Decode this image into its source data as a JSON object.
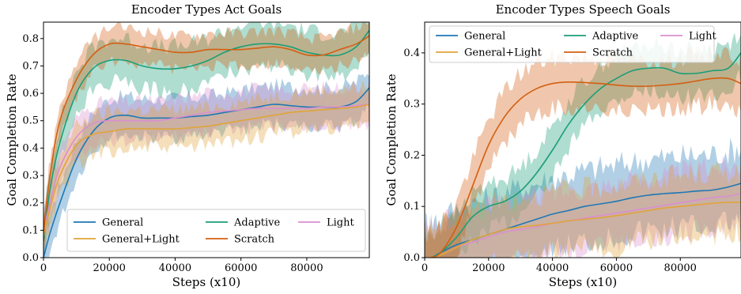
{
  "chart_data": [
    {
      "type": "line",
      "title": "Encoder Types Act Goals",
      "xlabel": "Steps (x10)",
      "ylabel": "Goal Completion Rate",
      "xlim": [
        0,
        99000
      ],
      "ylim": [
        0.0,
        0.86
      ],
      "xticks": [
        0,
        20000,
        40000,
        60000,
        80000
      ],
      "xtick_labels": [
        "0",
        "20000",
        "40000",
        "60000",
        "80000"
      ],
      "yticks": [
        0.0,
        0.1,
        0.2,
        0.3,
        0.4,
        0.5,
        0.6,
        0.7,
        0.8
      ],
      "ytick_labels": [
        "0.0",
        "0.1",
        "0.2",
        "0.3",
        "0.4",
        "0.5",
        "0.6",
        "0.7",
        "0.8"
      ],
      "grid": false,
      "legend": "lower-right",
      "x": [
        0,
        2000,
        5000,
        10000,
        15000,
        20000,
        25000,
        30000,
        35000,
        40000,
        45000,
        50000,
        55000,
        60000,
        65000,
        70000,
        75000,
        80000,
        85000,
        90000,
        95000,
        99000
      ],
      "series": [
        {
          "name": "General",
          "color": "#1f77b4",
          "values": [
            0.0,
            0.09,
            0.2,
            0.36,
            0.46,
            0.51,
            0.52,
            0.51,
            0.51,
            0.51,
            0.515,
            0.52,
            0.53,
            0.54,
            0.55,
            0.56,
            0.555,
            0.55,
            0.55,
            0.55,
            0.57,
            0.62
          ],
          "band": 0.07
        },
        {
          "name": "Adaptive",
          "color": "#1a9e77",
          "values": [
            0.06,
            0.25,
            0.42,
            0.6,
            0.69,
            0.72,
            0.72,
            0.7,
            0.69,
            0.69,
            0.7,
            0.72,
            0.75,
            0.77,
            0.78,
            0.78,
            0.77,
            0.75,
            0.74,
            0.74,
            0.77,
            0.83
          ],
          "band": 0.08
        },
        {
          "name": "Light",
          "color": "#d98fd0",
          "values": [
            0.1,
            0.2,
            0.33,
            0.44,
            0.49,
            0.5,
            0.5,
            0.5,
            0.5,
            0.51,
            0.52,
            0.53,
            0.535,
            0.54,
            0.545,
            0.545,
            0.545,
            0.545,
            0.55,
            0.55,
            0.555,
            0.56
          ],
          "band": 0.07
        },
        {
          "name": "General+Light",
          "color": "#e0a43a",
          "values": [
            0.08,
            0.18,
            0.3,
            0.41,
            0.45,
            0.46,
            0.47,
            0.47,
            0.47,
            0.47,
            0.475,
            0.48,
            0.49,
            0.5,
            0.51,
            0.52,
            0.53,
            0.535,
            0.54,
            0.545,
            0.55,
            0.56
          ],
          "band": 0.07
        },
        {
          "name": "Scratch",
          "color": "#d35f12",
          "values": [
            0.09,
            0.3,
            0.5,
            0.65,
            0.74,
            0.78,
            0.78,
            0.77,
            0.76,
            0.75,
            0.75,
            0.76,
            0.76,
            0.76,
            0.765,
            0.77,
            0.76,
            0.74,
            0.74,
            0.76,
            0.78,
            0.81
          ],
          "band": 0.06
        }
      ]
    },
    {
      "type": "line",
      "title": "Encoder Types Speech Goals",
      "xlabel": "Steps (x10)",
      "ylabel": "Goal Completion Rate",
      "xlim": [
        0,
        99000
      ],
      "ylim": [
        0.0,
        0.46
      ],
      "xticks": [
        0,
        20000,
        40000,
        60000,
        80000
      ],
      "xtick_labels": [
        "0",
        "20000",
        "40000",
        "60000",
        "80000"
      ],
      "yticks": [
        0.0,
        0.1,
        0.2,
        0.3,
        0.4
      ],
      "ytick_labels": [
        "0.0",
        "0.1",
        "0.2",
        "0.3",
        "0.4"
      ],
      "grid": false,
      "legend": "top-left",
      "x": [
        0,
        2000,
        5000,
        10000,
        15000,
        20000,
        25000,
        30000,
        35000,
        40000,
        45000,
        50000,
        55000,
        60000,
        65000,
        70000,
        75000,
        80000,
        85000,
        90000,
        95000,
        99000
      ],
      "series": [
        {
          "name": "General",
          "color": "#1f77b4",
          "values": [
            0.0,
            0.0,
            0.01,
            0.025,
            0.035,
            0.045,
            0.055,
            0.065,
            0.075,
            0.085,
            0.092,
            0.1,
            0.105,
            0.11,
            0.117,
            0.122,
            0.125,
            0.127,
            0.13,
            0.132,
            0.138,
            0.145
          ],
          "band": 0.07
        },
        {
          "name": "Adaptive",
          "color": "#1a9e77",
          "values": [
            0.0,
            0.0,
            0.01,
            0.04,
            0.08,
            0.1,
            0.11,
            0.13,
            0.165,
            0.21,
            0.26,
            0.3,
            0.33,
            0.35,
            0.365,
            0.37,
            0.37,
            0.36,
            0.36,
            0.365,
            0.37,
            0.4
          ],
          "band": 0.045
        },
        {
          "name": "Light",
          "color": "#d98fd0",
          "values": [
            0.0,
            0.0,
            0.005,
            0.02,
            0.03,
            0.04,
            0.05,
            0.055,
            0.06,
            0.067,
            0.072,
            0.077,
            0.082,
            0.087,
            0.092,
            0.097,
            0.102,
            0.107,
            0.112,
            0.117,
            0.12,
            0.125
          ],
          "band": 0.06
        },
        {
          "name": "General+Light",
          "color": "#e0a43a",
          "values": [
            0.0,
            0.0,
            0.005,
            0.02,
            0.035,
            0.045,
            0.055,
            0.06,
            0.063,
            0.067,
            0.072,
            0.075,
            0.078,
            0.082,
            0.087,
            0.092,
            0.097,
            0.1,
            0.103,
            0.106,
            0.108,
            0.108
          ],
          "band": 0.06
        },
        {
          "name": "Scratch",
          "color": "#d35f12",
          "values": [
            0.0,
            0.0,
            0.01,
            0.06,
            0.14,
            0.22,
            0.275,
            0.31,
            0.33,
            0.34,
            0.343,
            0.342,
            0.34,
            0.337,
            0.335,
            0.335,
            0.337,
            0.34,
            0.345,
            0.35,
            0.35,
            0.34
          ],
          "band": 0.05
        }
      ]
    }
  ],
  "legends": [
    {
      "entries": [
        "General",
        "Adaptive",
        "Light",
        "General+Light",
        "Scratch"
      ]
    },
    {
      "entries": [
        "General",
        "Adaptive",
        "Light",
        "General+Light",
        "Scratch"
      ]
    }
  ]
}
